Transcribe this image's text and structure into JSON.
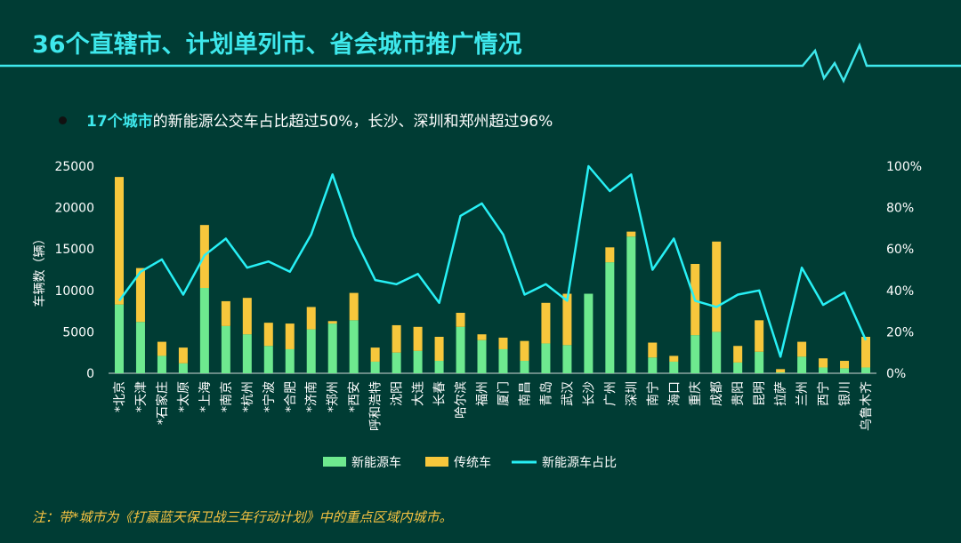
{
  "slide": {
    "title": "36个直辖市、计划单列市、省会城市推广情况",
    "bullet_highlight": "17个城市",
    "bullet_rest": "的新能源公交车占比超过50%，长沙、深圳和郑州超过96%",
    "note_prefix": "注：带",
    "note_star": "*",
    "note_rest": "城市为《打赢蓝天保卫战三年行动计划》中的重点区域内城市。"
  },
  "colors": {
    "background": "#003c34",
    "new_energy": "#6ee98f",
    "traditional": "#f7c73c",
    "ratio_line": "#27f0f5",
    "text": "#ffffff"
  },
  "chart_data": {
    "type": "bar",
    "stacked": true,
    "categories": [
      "*北京",
      "*天津",
      "*石家庄",
      "*太原",
      "*上海",
      "*南京",
      "*杭州",
      "*宁波",
      "*合肥",
      "*济南",
      "*郑州",
      "*西安",
      "呼和浩特",
      "沈阳",
      "大连",
      "长春",
      "哈尔滨",
      "福州",
      "厦门",
      "南昌",
      "青岛",
      "武汉",
      "长沙",
      "广州",
      "深圳",
      "南宁",
      "海口",
      "重庆",
      "成都",
      "贵阳",
      "昆明",
      "拉萨",
      "兰州",
      "西宁",
      "银川",
      "乌鲁木齐"
    ],
    "series": [
      {
        "name": "新能源车",
        "axis": "left",
        "values": [
          8300,
          6200,
          2100,
          1200,
          10300,
          5700,
          4700,
          3300,
          2900,
          5300,
          6000,
          6400,
          1400,
          2500,
          2700,
          1500,
          5600,
          4000,
          2900,
          1500,
          3600,
          3400,
          9600,
          13400,
          16500,
          1900,
          1400,
          4600,
          5000,
          1300,
          2600,
          100,
          2000,
          700,
          600,
          700
        ]
      },
      {
        "name": "传统车",
        "axis": "left",
        "values": [
          15400,
          6500,
          1700,
          1900,
          7600,
          3000,
          4400,
          2800,
          3100,
          2700,
          300,
          3300,
          1700,
          3300,
          2900,
          2900,
          1700,
          700,
          1400,
          2400,
          4900,
          6200,
          0,
          1800,
          600,
          1800,
          700,
          8600,
          10900,
          2000,
          3800,
          400,
          1800,
          1100,
          900,
          3700
        ]
      },
      {
        "name": "新能源车占比",
        "axis": "right",
        "type": "line",
        "values": [
          35,
          49,
          55,
          38,
          57,
          65,
          51,
          54,
          49,
          67,
          96,
          66,
          45,
          43,
          48,
          34,
          76,
          82,
          67,
          38,
          43,
          35,
          100,
          88,
          96,
          50,
          65,
          35,
          32,
          38,
          40,
          8,
          51,
          33,
          39,
          16
        ]
      }
    ],
    "y_left": {
      "label": "车辆数（辆）",
      "ylim": [
        0,
        25000
      ],
      "ticks": [
        "0",
        "5000",
        "10000",
        "15000",
        "20000",
        "25000"
      ]
    },
    "y_right": {
      "ylim": [
        0,
        100
      ],
      "ticks": [
        "0%",
        "20%",
        "40%",
        "60%",
        "80%",
        "100%"
      ]
    },
    "legend_position": "bottom-center",
    "grid": false
  }
}
